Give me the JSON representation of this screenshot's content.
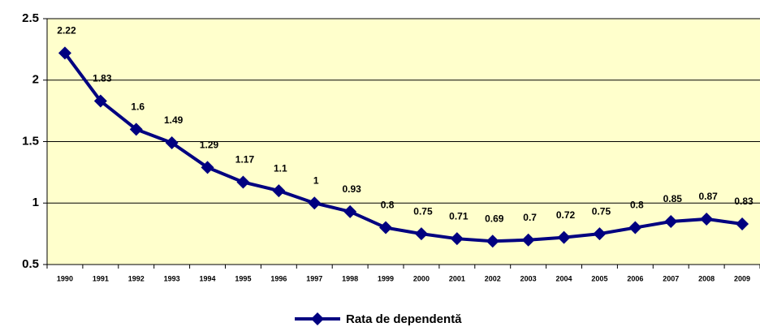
{
  "chart_data": {
    "type": "line",
    "categories": [
      "1990",
      "1991",
      "1992",
      "1993",
      "1994",
      "1995",
      "1996",
      "1997",
      "1998",
      "1999",
      "2000",
      "2001",
      "2002",
      "2003",
      "2004",
      "2005",
      "2006",
      "2007",
      "2008",
      "2009"
    ],
    "series": [
      {
        "name": "Rata de dependentă",
        "color": "#000080",
        "values": [
          2.22,
          1.83,
          1.6,
          1.49,
          1.29,
          1.17,
          1.1,
          1,
          0.93,
          0.8,
          0.75,
          0.71,
          0.69,
          0.7,
          0.72,
          0.75,
          0.8,
          0.85,
          0.87,
          0.83
        ]
      }
    ],
    "ylim": [
      0.5,
      2.5
    ],
    "yticks": [
      0.5,
      1,
      1.5,
      2,
      2.5
    ],
    "grid": true,
    "plot_background": "#ffffcc",
    "legend": "bottom",
    "data_labels": true
  }
}
